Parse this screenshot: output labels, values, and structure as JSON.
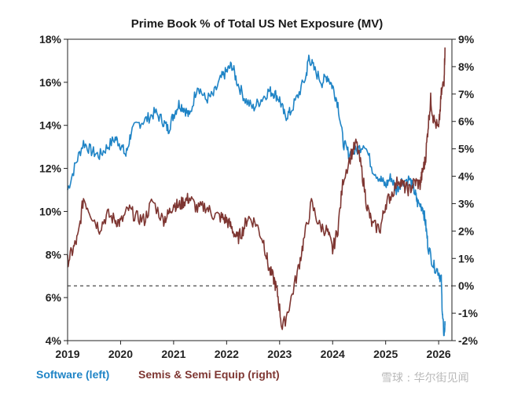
{
  "chart_data": {
    "type": "line",
    "title": "Prime Book % of Total US Net Exposure (MV)",
    "xlabel": "",
    "x_ticks": [
      "2019",
      "2020",
      "2021",
      "2022",
      "2023",
      "2024",
      "2025",
      "2026"
    ],
    "xlim": [
      2019.0,
      2026.25
    ],
    "y_left": {
      "label": "",
      "lim": [
        4,
        18
      ],
      "ticks": [
        4,
        6,
        8,
        10,
        12,
        14,
        16,
        18
      ],
      "tick_labels": [
        "4%",
        "6%",
        "8%",
        "10%",
        "12%",
        "14%",
        "16%",
        "18%"
      ]
    },
    "y_right": {
      "label": "",
      "lim": [
        -2,
        9
      ],
      "ticks": [
        -2,
        -1,
        0,
        1,
        2,
        3,
        4,
        5,
        6,
        7,
        8,
        9
      ],
      "tick_labels": [
        "-2%",
        "-1%",
        "0%",
        "1%",
        "2%",
        "3%",
        "4%",
        "5%",
        "6%",
        "7%",
        "8%",
        "9%"
      ]
    },
    "reference_line": {
      "axis": "right",
      "value": 0,
      "style": "dashed"
    },
    "grid": false,
    "legend_position": "bottom-left",
    "series": [
      {
        "name": "Software (left)",
        "axis": "left",
        "color": "#1f84c6",
        "x": [
          2019.0,
          2019.15,
          2019.3,
          2019.45,
          2019.6,
          2019.75,
          2019.9,
          2020.0,
          2020.1,
          2020.2,
          2020.35,
          2020.5,
          2020.65,
          2020.8,
          2020.9,
          2021.0,
          2021.1,
          2021.2,
          2021.3,
          2021.45,
          2021.6,
          2021.75,
          2021.9,
          2022.0,
          2022.1,
          2022.2,
          2022.35,
          2022.5,
          2022.65,
          2022.8,
          2022.9,
          2023.0,
          2023.1,
          2023.2,
          2023.35,
          2023.5,
          2023.55,
          2023.65,
          2023.8,
          2023.9,
          2024.0,
          2024.1,
          2024.2,
          2024.3,
          2024.45,
          2024.6,
          2024.75,
          2024.9,
          2025.0,
          2025.1,
          2025.2,
          2025.3,
          2025.45,
          2025.55,
          2025.6,
          2025.7,
          2025.75,
          2025.8,
          2025.9,
          2026.0,
          2026.05,
          2026.07,
          2026.1,
          2026.12
        ],
        "y": [
          11.0,
          12.2,
          13.2,
          12.8,
          12.6,
          13.0,
          13.4,
          13.1,
          12.6,
          13.7,
          14.1,
          14.3,
          14.6,
          14.2,
          13.8,
          14.5,
          15.0,
          14.8,
          14.4,
          15.9,
          15.2,
          15.4,
          16.2,
          16.5,
          16.8,
          16.0,
          15.2,
          14.8,
          15.2,
          15.6,
          15.5,
          15.2,
          14.4,
          14.6,
          15.4,
          16.3,
          17.2,
          16.6,
          16.0,
          16.3,
          15.8,
          15.0,
          13.2,
          12.7,
          12.8,
          13.2,
          12.0,
          11.5,
          11.2,
          11.6,
          11.0,
          11.4,
          11.5,
          10.9,
          10.4,
          10.2,
          9.5,
          8.4,
          7.5,
          7.2,
          6.8,
          5.2,
          4.3,
          4.7
        ]
      },
      {
        "name": "Semis & Semi Equip (right)",
        "axis": "right",
        "color": "#7e3632",
        "x": [
          2019.0,
          2019.1,
          2019.2,
          2019.3,
          2019.45,
          2019.6,
          2019.75,
          2019.9,
          2020.0,
          2020.15,
          2020.3,
          2020.45,
          2020.6,
          2020.8,
          2020.9,
          2021.0,
          2021.1,
          2021.2,
          2021.3,
          2021.45,
          2021.6,
          2021.75,
          2021.9,
          2022.0,
          2022.1,
          2022.2,
          2022.3,
          2022.4,
          2022.55,
          2022.7,
          2022.8,
          2022.9,
          2022.97,
          2023.05,
          2023.2,
          2023.35,
          2023.45,
          2023.6,
          2023.75,
          2023.9,
          2024.0,
          2024.1,
          2024.2,
          2024.35,
          2024.45,
          2024.55,
          2024.65,
          2024.75,
          2024.9,
          2025.0,
          2025.1,
          2025.25,
          2025.35,
          2025.45,
          2025.55,
          2025.65,
          2025.7,
          2025.75,
          2025.8,
          2025.85,
          2025.9,
          2026.0,
          2026.05,
          2026.1,
          2026.12
        ],
        "y": [
          0.9,
          1.3,
          1.8,
          3.2,
          2.6,
          2.1,
          2.6,
          2.4,
          2.3,
          2.8,
          2.5,
          2.4,
          3.1,
          2.4,
          2.6,
          3.0,
          2.9,
          3.1,
          3.2,
          2.8,
          2.9,
          2.6,
          2.5,
          2.4,
          2.1,
          1.7,
          2.0,
          2.5,
          2.3,
          1.6,
          0.6,
          0.2,
          -0.4,
          -1.6,
          -0.6,
          0.6,
          1.6,
          3.0,
          2.2,
          2.0,
          1.3,
          2.1,
          3.9,
          4.8,
          5.2,
          4.2,
          2.9,
          2.2,
          2.1,
          3.0,
          3.3,
          3.9,
          3.6,
          3.5,
          3.8,
          3.7,
          4.2,
          4.6,
          5.8,
          6.8,
          6.1,
          5.7,
          7.0,
          7.5,
          8.7
        ]
      }
    ],
    "watermark": "雪球 : 华尔街见闻"
  }
}
